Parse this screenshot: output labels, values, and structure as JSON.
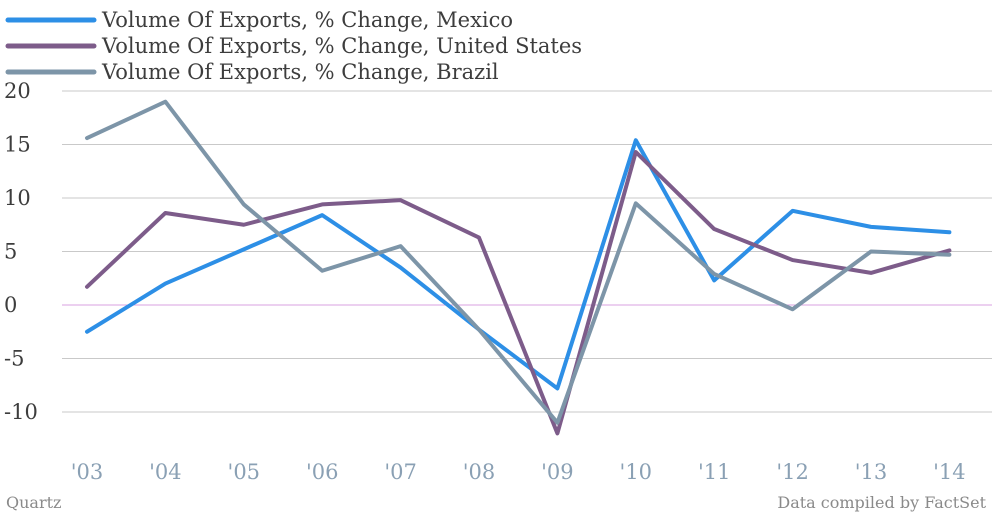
{
  "chart_data": {
    "type": "line",
    "title": "",
    "xlabel": "",
    "ylabel": "",
    "categories": [
      "'03",
      "'04",
      "'05",
      "'06",
      "'07",
      "'08",
      "'09",
      "'10",
      "'11",
      "'12",
      "'13",
      "'14"
    ],
    "yticks": [
      "20",
      "15",
      "10",
      "5",
      "0",
      "-5",
      "-10"
    ],
    "ylim": [
      -14,
      20
    ],
    "grid": true,
    "legend_position": "top-left",
    "series": [
      {
        "name": "Volume Of Exports, % Change, Mexico",
        "color": "#2d8fe6",
        "values": [
          -2.5,
          2.0,
          5.2,
          8.4,
          3.5,
          -2.3,
          -7.8,
          15.4,
          2.3,
          8.8,
          7.3,
          6.8
        ]
      },
      {
        "name": "Volume Of Exports, % Change, United States",
        "color": "#7d5c8a",
        "values": [
          1.7,
          8.6,
          7.5,
          9.4,
          9.8,
          6.3,
          -12.0,
          14.3,
          7.1,
          4.2,
          3.0,
          5.1
        ]
      },
      {
        "name": "Volume Of Exports, % Change, Brazil",
        "color": "#7d95a8",
        "values": [
          15.6,
          19.0,
          9.4,
          3.2,
          5.5,
          -2.3,
          -11.0,
          9.5,
          2.9,
          -0.4,
          5.0,
          4.7
        ]
      }
    ],
    "zero_line_color": "#d9a2e0",
    "source_left": "Quartz",
    "source_right": "Data compiled by FactSet"
  }
}
